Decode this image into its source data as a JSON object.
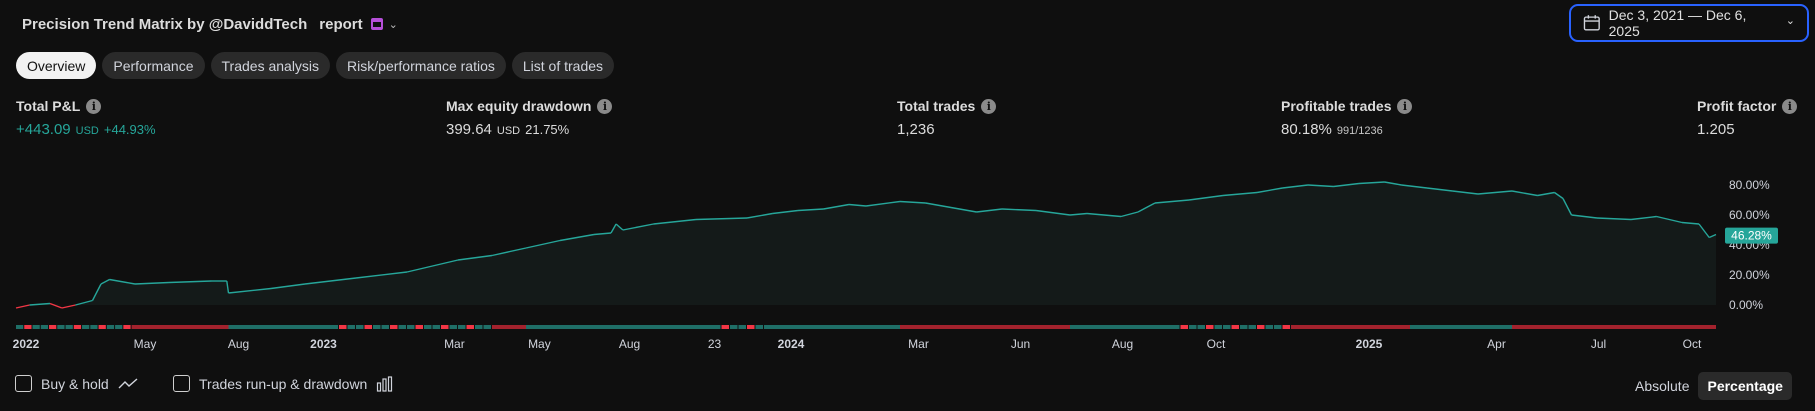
{
  "header": {
    "strategy_icon": "",
    "title": "Precision Trend Matrix by @DaviddTech",
    "title_icon2": "",
    "report_label": "report",
    "calendar_badge_icon": "calendar-badge-icon",
    "chevron": "⌄"
  },
  "date_range": {
    "icon": "calendar-icon",
    "label": "Dec 3, 2021 — Dec 6, 2025",
    "chevron": "⌄"
  },
  "tabs": [
    {
      "label": "Overview",
      "active": true
    },
    {
      "label": "Performance",
      "active": false
    },
    {
      "label": "Trades analysis",
      "active": false
    },
    {
      "label": "Risk/performance ratios",
      "active": false
    },
    {
      "label": "List of trades",
      "active": false
    }
  ],
  "metrics": {
    "info_glyph": "i",
    "total_pnl": {
      "label": "Total P&L",
      "value": "+443.09",
      "unit": "USD",
      "pct": "+44.93%"
    },
    "max_dd": {
      "label": "Max equity drawdown",
      "value": "399.64",
      "unit": "USD",
      "pct": "21.75%"
    },
    "total_trades": {
      "label": "Total trades",
      "value": "1,236"
    },
    "profitable": {
      "label": "Profitable trades",
      "value": "80.18%",
      "ratio": "991/1236"
    },
    "profit_factor": {
      "label": "Profit factor",
      "value": "1.205"
    }
  },
  "colors": {
    "accent": "#26a69a",
    "loss": "#f23645",
    "focus": "#2962ff",
    "badge": "#b64fd9"
  },
  "chart_data": {
    "type": "area",
    "y_ticks": [
      "80.00%",
      "60.00%",
      "40.00%",
      "20.00%",
      "0.00%"
    ],
    "ylim": [
      0,
      100
    ],
    "current_value_label": "46.28%",
    "x_labels": [
      {
        "t": 0.0,
        "label": "2022",
        "bold": true
      },
      {
        "t": 0.07,
        "label": "May",
        "bold": false
      },
      {
        "t": 0.125,
        "label": "Aug",
        "bold": false
      },
      {
        "t": 0.175,
        "label": "2023",
        "bold": true
      },
      {
        "t": 0.252,
        "label": "Mar",
        "bold": false
      },
      {
        "t": 0.302,
        "label": "May",
        "bold": false
      },
      {
        "t": 0.355,
        "label": "Aug",
        "bold": false
      },
      {
        "t": 0.405,
        "label": "23",
        "bold": false
      },
      {
        "t": 0.45,
        "label": "2024",
        "bold": true
      },
      {
        "t": 0.525,
        "label": "Mar",
        "bold": false
      },
      {
        "t": 0.585,
        "label": "Jun",
        "bold": false
      },
      {
        "t": 0.645,
        "label": "Aug",
        "bold": false
      },
      {
        "t": 0.7,
        "label": "Oct",
        "bold": false
      },
      {
        "t": 0.79,
        "label": "2025",
        "bold": true
      },
      {
        "t": 0.865,
        "label": "Apr",
        "bold": false
      },
      {
        "t": 0.925,
        "label": "Jul",
        "bold": false
      },
      {
        "t": 0.98,
        "label": "Oct",
        "bold": false
      }
    ],
    "series": [
      {
        "values": [
          [
            0.0,
            -2
          ],
          [
            0.008,
            0
          ],
          [
            0.02,
            1
          ],
          [
            0.027,
            -2
          ],
          [
            0.035,
            0
          ],
          [
            0.045,
            3
          ],
          [
            0.05,
            14
          ],
          [
            0.055,
            17
          ],
          [
            0.07,
            14
          ],
          [
            0.09,
            15
          ],
          [
            0.115,
            16
          ],
          [
            0.124,
            16
          ],
          [
            0.125,
            8
          ],
          [
            0.15,
            11
          ],
          [
            0.17,
            14
          ],
          [
            0.2,
            18
          ],
          [
            0.23,
            22
          ],
          [
            0.26,
            30
          ],
          [
            0.28,
            33
          ],
          [
            0.3,
            38
          ],
          [
            0.32,
            43
          ],
          [
            0.34,
            47
          ],
          [
            0.35,
            48
          ],
          [
            0.353,
            54
          ],
          [
            0.357,
            50
          ],
          [
            0.375,
            54
          ],
          [
            0.4,
            57
          ],
          [
            0.43,
            58
          ],
          [
            0.445,
            61
          ],
          [
            0.46,
            63
          ],
          [
            0.475,
            64
          ],
          [
            0.49,
            67
          ],
          [
            0.5,
            66
          ],
          [
            0.52,
            69
          ],
          [
            0.535,
            68
          ],
          [
            0.55,
            65
          ],
          [
            0.565,
            62
          ],
          [
            0.58,
            64
          ],
          [
            0.6,
            63
          ],
          [
            0.62,
            60
          ],
          [
            0.63,
            61
          ],
          [
            0.65,
            59
          ],
          [
            0.66,
            62
          ],
          [
            0.67,
            68
          ],
          [
            0.69,
            70
          ],
          [
            0.71,
            73
          ],
          [
            0.73,
            75
          ],
          [
            0.745,
            78
          ],
          [
            0.76,
            80
          ],
          [
            0.775,
            79
          ],
          [
            0.79,
            81
          ],
          [
            0.805,
            82
          ],
          [
            0.815,
            80
          ],
          [
            0.83,
            78
          ],
          [
            0.845,
            76
          ],
          [
            0.86,
            74
          ],
          [
            0.88,
            76
          ],
          [
            0.895,
            73
          ],
          [
            0.905,
            75
          ],
          [
            0.91,
            71
          ],
          [
            0.915,
            60
          ],
          [
            0.93,
            58
          ],
          [
            0.95,
            57
          ],
          [
            0.965,
            59
          ],
          [
            0.98,
            55
          ],
          [
            0.99,
            54
          ],
          [
            0.996,
            45
          ],
          [
            1.0,
            47
          ]
        ]
      }
    ],
    "trade_bar": [
      {
        "a": 0.0,
        "b": 0.068,
        "pnl": "mixed"
      },
      {
        "a": 0.068,
        "b": 0.125,
        "pnl": "loss"
      },
      {
        "a": 0.125,
        "b": 0.185,
        "pnl": "win"
      },
      {
        "a": 0.185,
        "b": 0.28,
        "pnl": "mixed"
      },
      {
        "a": 0.28,
        "b": 0.3,
        "pnl": "loss"
      },
      {
        "a": 0.3,
        "b": 0.41,
        "pnl": "win"
      },
      {
        "a": 0.41,
        "b": 0.44,
        "pnl": "mixed"
      },
      {
        "a": 0.44,
        "b": 0.52,
        "pnl": "win"
      },
      {
        "a": 0.52,
        "b": 0.62,
        "pnl": "loss"
      },
      {
        "a": 0.62,
        "b": 0.68,
        "pnl": "win"
      },
      {
        "a": 0.68,
        "b": 0.75,
        "pnl": "mixed"
      },
      {
        "a": 0.75,
        "b": 0.82,
        "pnl": "loss"
      },
      {
        "a": 0.82,
        "b": 0.88,
        "pnl": "win"
      },
      {
        "a": 0.88,
        "b": 1.0,
        "pnl": "loss"
      }
    ]
  },
  "footer": {
    "buy_hold": {
      "label": "Buy & hold",
      "checked": false,
      "icon": "line-chart-icon"
    },
    "runup": {
      "label": "Trades run-up & drawdown",
      "checked": false,
      "icon": "bar-chart-icon"
    },
    "absolute": "Absolute",
    "percentage": "Percentage"
  }
}
